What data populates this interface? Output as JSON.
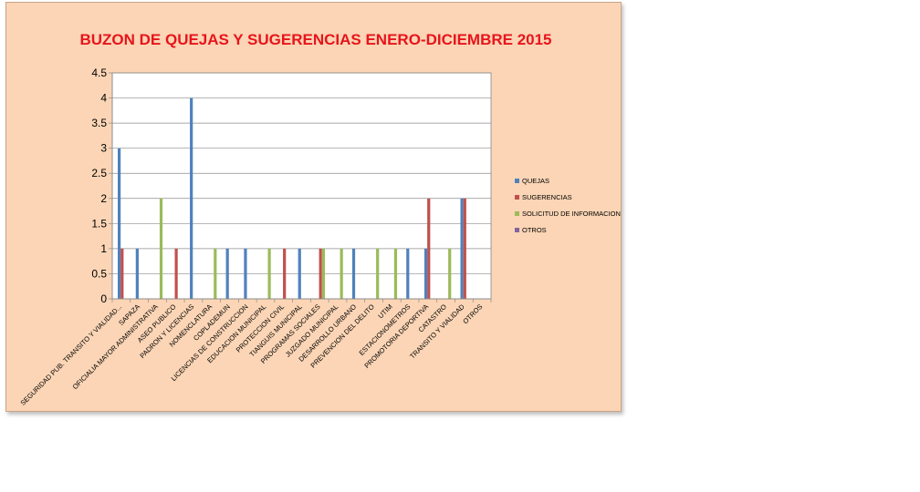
{
  "chart_data": {
    "type": "bar",
    "title": "BUZON DE QUEJAS  Y SUGERENCIAS ENERO-DICIEMBRE 2015",
    "xlabel": "",
    "ylabel": "",
    "ylim": [
      0,
      4.5
    ],
    "yticks": [
      "0",
      "0.5",
      "1",
      "1.5",
      "2",
      "2.5",
      "3",
      "3.5",
      "4",
      "4.5"
    ],
    "grid": true,
    "legend_position": "right",
    "categories": [
      "SEGURIDAD PUB. TRANSITO Y VIALIDAD...",
      "SAPAZA",
      "OFICIALIA MAYOR ADMINISTRATIVA",
      "ASEO PUBLICO",
      "PADRON Y LICENCIAS",
      "NOMENCLATURA",
      "COPLADEMUN",
      "LICENCIAS DE CONSTRUCCION",
      "EDUCACION MUNICIPAL",
      "PROTECCION CIVIL",
      "TIANGUIS MUNICIPAL",
      "PROGRAMAS SOCIALES",
      "JUZGADO MUNICIPAL",
      "DESARROLLO URBANO",
      "PREVENCION DEL DELITO",
      "UTIM",
      "ESTACIONOMETROS",
      "PROMOTORIA DEPORTIVA",
      "CATASTRO",
      "TRANSITO Y VIALIDAD",
      "OTROS"
    ],
    "series": [
      {
        "name": "QUEJAS",
        "color": "#4f81bd",
        "values": [
          3,
          1,
          0,
          0,
          4,
          0,
          1,
          1,
          0,
          0,
          1,
          0,
          0,
          1,
          0,
          0,
          1,
          1,
          0,
          2,
          0
        ]
      },
      {
        "name": "SUGERENCIAS",
        "color": "#c0504d",
        "values": [
          1,
          0,
          0,
          1,
          0,
          0,
          0,
          0,
          0,
          1,
          0,
          1,
          0,
          0,
          0,
          0,
          0,
          2,
          0,
          2,
          0
        ]
      },
      {
        "name": "SOLICITUD DE INFORMACION",
        "color": "#9bbb59",
        "values": [
          0,
          0,
          2,
          0,
          0,
          1,
          0,
          0,
          1,
          0,
          0,
          1,
          1,
          0,
          1,
          1,
          0,
          0,
          1,
          0,
          0
        ]
      },
      {
        "name": "OTROS",
        "color": "#8064a2",
        "values": [
          0,
          0,
          0,
          0,
          0,
          0,
          0,
          0,
          0,
          0,
          0,
          0,
          0,
          0,
          0,
          0,
          0,
          0,
          0,
          0,
          0
        ]
      }
    ]
  }
}
